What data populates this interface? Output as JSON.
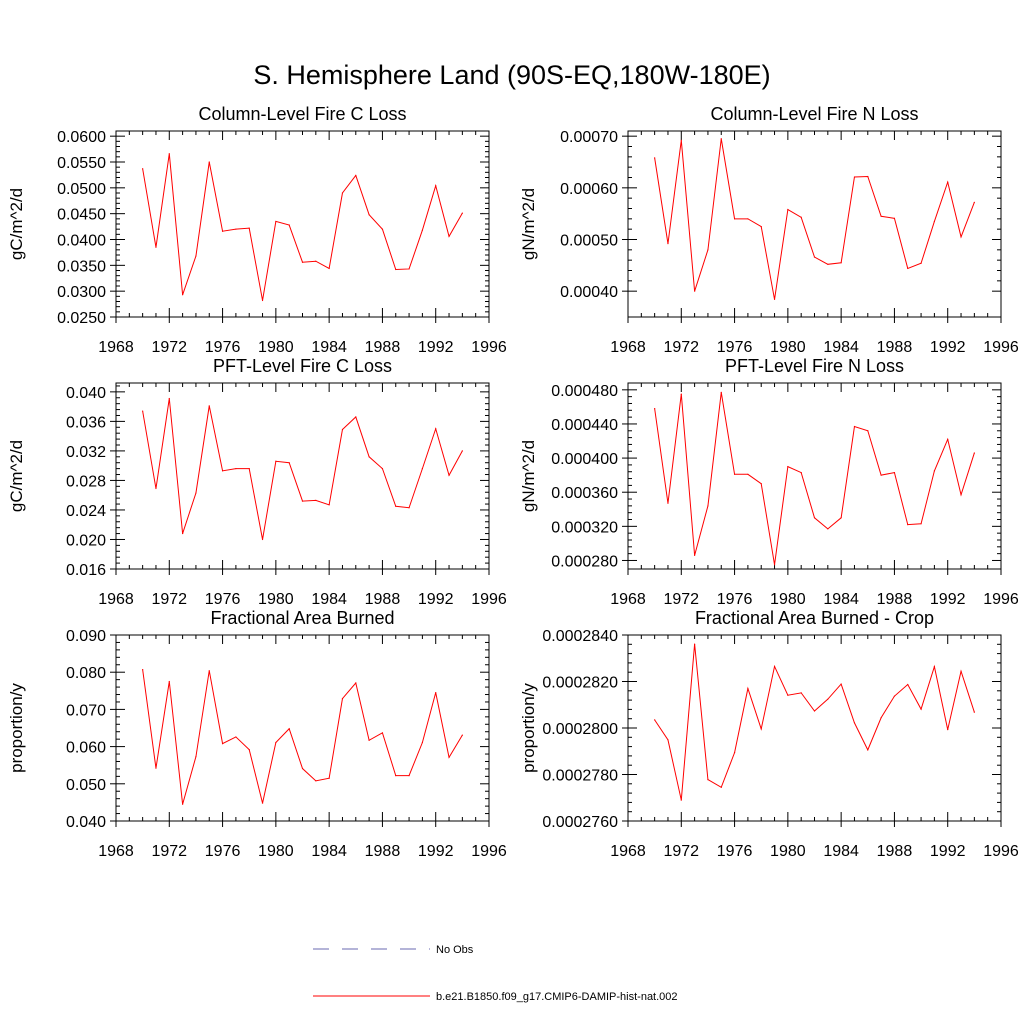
{
  "figure": {
    "title": "S. Hemisphere Land (90S-EQ,180W-180E)"
  },
  "legend": {
    "items": [
      {
        "label": "No Obs",
        "color": "#6a6ab0",
        "dash": true
      },
      {
        "label": "b.e21.B1850.f09_g17.CMIP6-DAMIP-hist-nat.002",
        "color": "#ff0000",
        "dash": false
      }
    ]
  },
  "chart_data": [
    {
      "type": "line",
      "title": "Column-Level Fire C Loss",
      "ylabel": "gC/m^2/d",
      "xlim": [
        1968,
        1996
      ],
      "ylim": [
        0.025,
        0.061
      ],
      "xticks": [
        1968,
        1972,
        1976,
        1980,
        1984,
        1988,
        1992,
        1996
      ],
      "yticks": [
        0.025,
        0.03,
        0.035,
        0.04,
        0.045,
        0.05,
        0.055,
        0.06
      ],
      "yticklabels": [
        "0.0250",
        "0.0300",
        "0.0350",
        "0.0400",
        "0.0450",
        "0.0500",
        "0.0550",
        "0.0600"
      ],
      "series": [
        {
          "color": "#ff0000",
          "x": [
            1970,
            1971,
            1972,
            1973,
            1974,
            1975,
            1976,
            1977,
            1978,
            1979,
            1980,
            1981,
            1982,
            1983,
            1984,
            1985,
            1986,
            1987,
            1988,
            1989,
            1990,
            1991,
            1992,
            1993,
            1994
          ],
          "values": [
            0.0537,
            0.0385,
            0.0566,
            0.0293,
            0.0368,
            0.055,
            0.0416,
            0.042,
            0.0422,
            0.0282,
            0.0435,
            0.0428,
            0.0356,
            0.0358,
            0.0344,
            0.049,
            0.0524,
            0.0448,
            0.042,
            0.0342,
            0.0343,
            0.0418,
            0.0504,
            0.0406,
            0.0451
          ]
        }
      ]
    },
    {
      "type": "line",
      "title": "Column-Level Fire N Loss",
      "ylabel": "gN/m^2/d",
      "xlim": [
        1968,
        1996
      ],
      "ylim": [
        0.00035,
        0.00071
      ],
      "xticks": [
        1968,
        1972,
        1976,
        1980,
        1984,
        1988,
        1992,
        1996
      ],
      "yticks": [
        0.0004,
        0.0005,
        0.0006,
        0.0007
      ],
      "yticklabels": [
        "0.00040",
        "0.00050",
        "0.00060",
        "0.00070"
      ],
      "series": [
        {
          "color": "#ff0000",
          "x": [
            1970,
            1971,
            1972,
            1973,
            1974,
            1975,
            1976,
            1977,
            1978,
            1979,
            1980,
            1981,
            1982,
            1983,
            1984,
            1985,
            1986,
            1987,
            1988,
            1989,
            1990,
            1991,
            1992,
            1993,
            1994
          ],
          "values": [
            0.000658,
            0.000492,
            0.000692,
            0.0004,
            0.00048,
            0.000695,
            0.00054,
            0.00054,
            0.000525,
            0.000384,
            0.000558,
            0.000543,
            0.000466,
            0.000452,
            0.000455,
            0.000621,
            0.000622,
            0.000545,
            0.000541,
            0.000444,
            0.000454,
            0.000535,
            0.000611,
            0.000505,
            0.000572
          ]
        }
      ]
    },
    {
      "type": "line",
      "title": "PFT-Level Fire C Loss",
      "ylabel": "gC/m^2/d",
      "xlim": [
        1968,
        1996
      ],
      "ylim": [
        0.016,
        0.0412
      ],
      "xticks": [
        1968,
        1972,
        1976,
        1980,
        1984,
        1988,
        1992,
        1996
      ],
      "yticks": [
        0.016,
        0.02,
        0.024,
        0.028,
        0.032,
        0.036,
        0.04
      ],
      "yticklabels": [
        "0.016",
        "0.020",
        "0.024",
        "0.028",
        "0.032",
        "0.036",
        "0.040"
      ],
      "series": [
        {
          "color": "#ff0000",
          "x": [
            1970,
            1971,
            1972,
            1973,
            1974,
            1975,
            1976,
            1977,
            1978,
            1979,
            1980,
            1981,
            1982,
            1983,
            1984,
            1985,
            1986,
            1987,
            1988,
            1989,
            1990,
            1991,
            1992,
            1993,
            1994
          ],
          "values": [
            0.0374,
            0.0269,
            0.0391,
            0.0208,
            0.0263,
            0.0381,
            0.0293,
            0.0296,
            0.0296,
            0.02,
            0.0306,
            0.0304,
            0.0252,
            0.0253,
            0.0247,
            0.0349,
            0.0366,
            0.0312,
            0.0296,
            0.0245,
            0.0243,
            0.0296,
            0.035,
            0.0287,
            0.032
          ]
        }
      ]
    },
    {
      "type": "line",
      "title": "PFT-Level Fire N Loss",
      "ylabel": "gN/m^2/d",
      "xlim": [
        1968,
        1996
      ],
      "ylim": [
        0.00027,
        0.000488
      ],
      "xticks": [
        1968,
        1972,
        1976,
        1980,
        1984,
        1988,
        1992,
        1996
      ],
      "yticks": [
        0.00028,
        0.00032,
        0.00036,
        0.0004,
        0.00044,
        0.00048
      ],
      "yticklabels": [
        "0.000280",
        "0.000320",
        "0.000360",
        "0.000400",
        "0.000440",
        "0.000480"
      ],
      "series": [
        {
          "color": "#ff0000",
          "x": [
            1970,
            1971,
            1972,
            1973,
            1974,
            1975,
            1976,
            1977,
            1978,
            1979,
            1980,
            1981,
            1982,
            1983,
            1984,
            1985,
            1986,
            1987,
            1988,
            1989,
            1990,
            1991,
            1992,
            1993,
            1994
          ],
          "values": [
            0.000458,
            0.000347,
            0.000475,
            0.000286,
            0.000344,
            0.000477,
            0.000381,
            0.000381,
            0.00037,
            0.000275,
            0.00039,
            0.000383,
            0.00033,
            0.000317,
            0.00033,
            0.000437,
            0.000432,
            0.00038,
            0.000383,
            0.000322,
            0.000323,
            0.000385,
            0.000422,
            0.000357,
            0.000406
          ]
        }
      ]
    },
    {
      "type": "line",
      "title": "Fractional Area Burned",
      "ylabel": "proportion/y",
      "xlim": [
        1968,
        1996
      ],
      "ylim": [
        0.04,
        0.09
      ],
      "xticks": [
        1968,
        1972,
        1976,
        1980,
        1984,
        1988,
        1992,
        1996
      ],
      "yticks": [
        0.04,
        0.05,
        0.06,
        0.07,
        0.08,
        0.09
      ],
      "yticklabels": [
        "0.040",
        "0.050",
        "0.060",
        "0.070",
        "0.080",
        "0.090"
      ],
      "series": [
        {
          "color": "#ff0000",
          "x": [
            1970,
            1971,
            1972,
            1973,
            1974,
            1975,
            1976,
            1977,
            1978,
            1979,
            1980,
            1981,
            1982,
            1983,
            1984,
            1985,
            1986,
            1987,
            1988,
            1989,
            1990,
            1991,
            1992,
            1993,
            1994
          ],
          "values": [
            0.0807,
            0.0542,
            0.0775,
            0.0445,
            0.0573,
            0.0804,
            0.0608,
            0.0626,
            0.0592,
            0.0448,
            0.0611,
            0.0648,
            0.0541,
            0.0508,
            0.0515,
            0.0729,
            0.0771,
            0.0617,
            0.0637,
            0.0522,
            0.0522,
            0.0611,
            0.0745,
            0.0571,
            0.0631
          ]
        }
      ]
    },
    {
      "type": "line",
      "title": "Fractional Area Burned - Crop",
      "ylabel": "proportion/y",
      "xlim": [
        1968,
        1996
      ],
      "ylim": [
        0.000276,
        0.000284
      ],
      "xticks": [
        1968,
        1972,
        1976,
        1980,
        1984,
        1988,
        1992,
        1996
      ],
      "yticks": [
        0.000276,
        0.000278,
        0.00028,
        0.000282,
        0.000284
      ],
      "yticklabels": [
        "0.0002760",
        "0.0002780",
        "0.0002800",
        "0.0002820",
        "0.0002840"
      ],
      "series": [
        {
          "color": "#ff0000",
          "x": [
            1970,
            1971,
            1972,
            1973,
            1974,
            1975,
            1976,
            1977,
            1978,
            1979,
            1980,
            1981,
            1982,
            1983,
            1984,
            1985,
            1986,
            1987,
            1988,
            1989,
            1990,
            1991,
            1992,
            1993,
            1994
          ],
          "values": [
            0.00028035,
            0.00027949,
            0.0002769,
            0.00028361,
            0.00027778,
            0.00027745,
            0.00027894,
            0.0002817,
            0.00027996,
            0.00028265,
            0.00028141,
            0.00028151,
            0.00028073,
            0.00028124,
            0.00028189,
            0.00028022,
            0.00027906,
            0.00028044,
            0.00028137,
            0.00028187,
            0.00028081,
            0.00028264,
            0.00027993,
            0.00028244,
            0.00028068
          ]
        }
      ]
    }
  ]
}
